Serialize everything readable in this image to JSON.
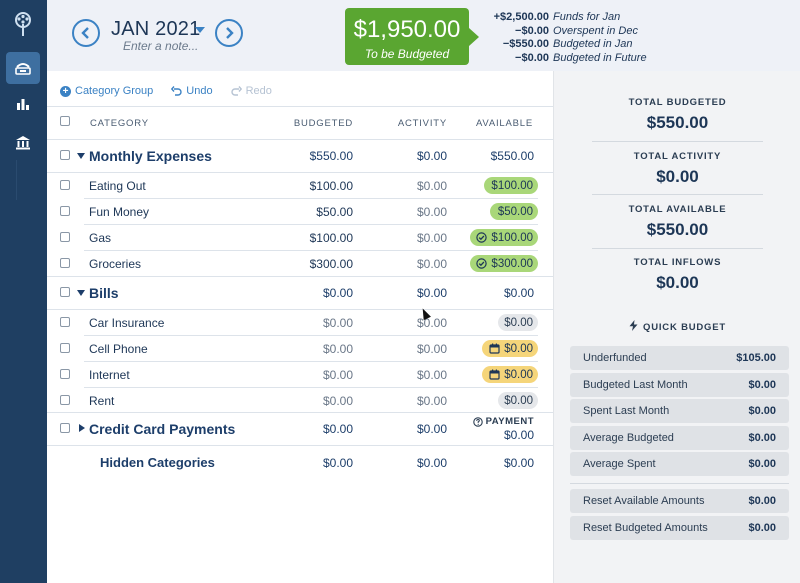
{
  "header": {
    "month": "JAN 2021",
    "note_placeholder": "Enter a note...",
    "to_be_budgeted": {
      "amount": "$1,950.00",
      "label": "To be Budgeted"
    },
    "summary": [
      {
        "amount": "+$2,500.00",
        "label": "Funds for Jan"
      },
      {
        "amount": "−$0.00",
        "label": "Overspent in Dec"
      },
      {
        "amount": "−$550.00",
        "label": "Budgeted in Jan"
      },
      {
        "amount": "−$0.00",
        "label": "Budgeted in Future"
      }
    ]
  },
  "toolbar": {
    "add_group": "Category Group",
    "undo": "Undo",
    "redo": "Redo"
  },
  "columns": {
    "category": "CATEGORY",
    "budgeted": "BUDGETED",
    "activity": "ACTIVITY",
    "available": "AVAILABLE"
  },
  "groups": [
    {
      "name": "Monthly Expenses",
      "budgeted": "$550.00",
      "activity": "$0.00",
      "available": "$550.00",
      "categories": [
        {
          "name": "Eating Out",
          "budgeted": "$100.00",
          "activity": "$0.00",
          "available": "$100.00",
          "status": "green",
          "icon": ""
        },
        {
          "name": "Fun Money",
          "budgeted": "$50.00",
          "activity": "$0.00",
          "available": "$50.00",
          "status": "green",
          "icon": ""
        },
        {
          "name": "Gas",
          "budgeted": "$100.00",
          "activity": "$0.00",
          "available": "$100.00",
          "status": "green",
          "icon": "check-circle-icon"
        },
        {
          "name": "Groceries",
          "budgeted": "$300.00",
          "activity": "$0.00",
          "available": "$300.00",
          "status": "green",
          "icon": "check-circle-icon"
        }
      ]
    },
    {
      "name": "Bills",
      "budgeted": "$0.00",
      "activity": "$0.00",
      "available": "$0.00",
      "categories": [
        {
          "name": "Car Insurance",
          "budgeted": "$0.00",
          "activity": "$0.00",
          "available": "$0.00",
          "status": "gray",
          "icon": ""
        },
        {
          "name": "Cell Phone",
          "budgeted": "$0.00",
          "activity": "$0.00",
          "available": "$0.00",
          "status": "yellow",
          "icon": "calendar-icon"
        },
        {
          "name": "Internet",
          "budgeted": "$0.00",
          "activity": "$0.00",
          "available": "$0.00",
          "status": "yellow",
          "icon": "calendar-icon"
        },
        {
          "name": "Rent",
          "budgeted": "$0.00",
          "activity": "$0.00",
          "available": "$0.00",
          "status": "gray",
          "icon": ""
        }
      ]
    },
    {
      "name": "Credit Card Payments",
      "budgeted": "$0.00",
      "activity": "$0.00",
      "available_label": "PAYMENT",
      "available": "$0.00"
    }
  ],
  "hidden": {
    "name": "Hidden Categories",
    "budgeted": "$0.00",
    "activity": "$0.00",
    "available": "$0.00"
  },
  "panel": {
    "stats": [
      {
        "label": "TOTAL BUDGETED",
        "value": "$550.00"
      },
      {
        "label": "TOTAL ACTIVITY",
        "value": "$0.00"
      },
      {
        "label": "TOTAL AVAILABLE",
        "value": "$550.00"
      },
      {
        "label": "TOTAL INFLOWS",
        "value": "$0.00"
      }
    ],
    "quick_budget_title": "QUICK BUDGET",
    "quick_budget": [
      {
        "label": "Underfunded",
        "value": "$105.00"
      },
      {
        "label": "Budgeted Last Month",
        "value": "$0.00"
      },
      {
        "label": "Spent Last Month",
        "value": "$0.00"
      },
      {
        "label": "Average Budgeted",
        "value": "$0.00"
      },
      {
        "label": "Average Spent",
        "value": "$0.00"
      }
    ],
    "reset": [
      {
        "label": "Reset Available Amounts",
        "value": "$0.00"
      },
      {
        "label": "Reset Budgeted Amounts",
        "value": "$0.00"
      }
    ]
  },
  "colors": {
    "sidebar": "#1f3f62",
    "accent": "#3b82c4",
    "tbb_green": "#5aa631",
    "pill_green": "#a9d779",
    "pill_yellow": "#f5d57a"
  }
}
